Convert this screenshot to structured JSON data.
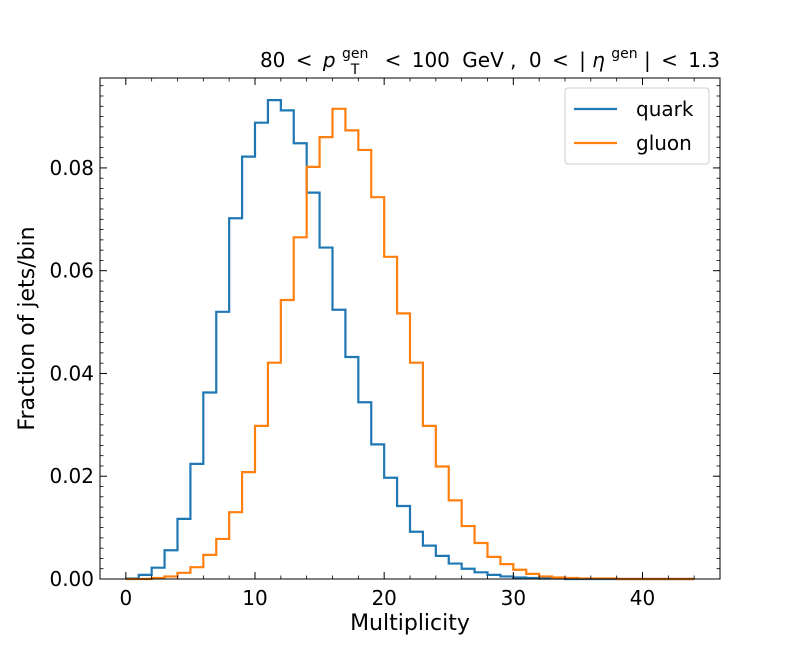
{
  "chart_data": {
    "type": "line",
    "style": "step-histogram",
    "title": {
      "pt_low": "80",
      "pt_high": "100",
      "pt_symbol": "p",
      "pt_sub": "T",
      "pt_sup": "gen",
      "eta_low": "0",
      "eta_high": "1.3",
      "eta_symbol": "η",
      "eta_sup": "gen",
      "lt": "<",
      "unit": "GeV",
      "sep": ","
    },
    "xlabel": "Multiplicity",
    "ylabel": "Fraction of jets/bin",
    "xlim": [
      -2,
      46
    ],
    "ylim": [
      0,
      0.0975
    ],
    "x_ticks": [
      0,
      10,
      20,
      30,
      40
    ],
    "x_tick_labels": [
      "0",
      "10",
      "20",
      "30",
      "40"
    ],
    "y_ticks": [
      0,
      0.02,
      0.04,
      0.06,
      0.08
    ],
    "y_tick_labels": [
      "0.00",
      "0.02",
      "0.04",
      "0.06",
      "0.08"
    ],
    "grid": false,
    "legend_position": "top-right",
    "bin_edges": [
      0,
      1,
      2,
      3,
      4,
      5,
      6,
      7,
      8,
      9,
      10,
      11,
      12,
      13,
      14,
      15,
      16,
      17,
      18,
      19,
      20,
      21,
      22,
      23,
      24,
      25,
      26,
      27,
      28,
      29,
      30,
      31,
      32,
      33,
      34,
      35,
      36,
      37,
      38,
      39,
      40,
      41,
      42,
      43,
      44
    ],
    "series": [
      {
        "name": "quark",
        "color": "#1f77b4",
        "values": [
          0.0001,
          0.0008,
          0.0022,
          0.0056,
          0.0117,
          0.0224,
          0.0363,
          0.052,
          0.0702,
          0.0822,
          0.0888,
          0.0932,
          0.0912,
          0.0848,
          0.0752,
          0.0645,
          0.0524,
          0.0432,
          0.0344,
          0.0262,
          0.0197,
          0.0142,
          0.0092,
          0.0065,
          0.0045,
          0.003,
          0.002,
          0.0013,
          0.0008,
          0.0005,
          0.0003,
          0.0002,
          0.0001,
          0.0001,
          0,
          0,
          0,
          0,
          0,
          0,
          0,
          0,
          0,
          0
        ]
      },
      {
        "name": "gluon",
        "color": "#ff7f0e",
        "values": [
          0,
          0,
          0.0002,
          0.0005,
          0.0012,
          0.0023,
          0.0047,
          0.0078,
          0.013,
          0.0208,
          0.0298,
          0.0421,
          0.0543,
          0.0665,
          0.0802,
          0.086,
          0.0915,
          0.0873,
          0.0835,
          0.0743,
          0.0627,
          0.0517,
          0.0421,
          0.0298,
          0.0219,
          0.0153,
          0.0103,
          0.007,
          0.0043,
          0.0029,
          0.0018,
          0.001,
          0.0005,
          0.0003,
          0.0002,
          0.0001,
          0.0001,
          0.0001,
          0,
          0,
          0,
          0,
          0,
          0
        ]
      }
    ]
  }
}
